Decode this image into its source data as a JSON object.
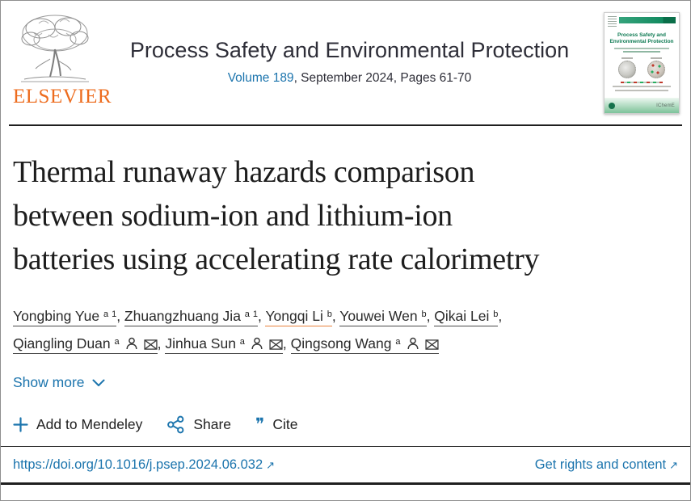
{
  "colors": {
    "link_blue": "#1b74ad",
    "elsevier_orange": "#ed6c1e",
    "cover_green": "#128a5f",
    "rule_dark": "#1f1f1f",
    "orange_underline": "#e8823c",
    "text_dark": "#212121"
  },
  "header": {
    "elsevier_label": "ELSEVIER",
    "journal_title": "Process Safety and Environmental Protection",
    "volume_link": "Volume 189",
    "issue_text": ", September 2024, Pages 61-70",
    "cover": {
      "title": "Process Safety and Environmental Protection",
      "publisher_label": "IChemE"
    }
  },
  "article": {
    "title": "Thermal runaway hazards comparison between sodium-ion and lithium-ion batteries using accelerating rate calorimetry",
    "title_lines": [
      "Thermal runaway hazards comparison",
      "between sodium-ion and lithium-ion",
      "batteries using accelerating rate calorimetry"
    ]
  },
  "authors": {
    "separator": ", ",
    "list": [
      {
        "name": "Yongbing Yue",
        "sup": "a 1",
        "contact_icons": false,
        "underline": "dark"
      },
      {
        "name": "Zhuangzhuang Jia",
        "sup": "a 1",
        "contact_icons": false,
        "underline": "dark"
      },
      {
        "name": "Yongqi Li",
        "sup": "b",
        "contact_icons": false,
        "underline": "orange"
      },
      {
        "name": "Youwei Wen",
        "sup": "b",
        "contact_icons": false,
        "underline": "dark"
      },
      {
        "name": "Qikai Lei",
        "sup": "b",
        "contact_icons": false,
        "underline": "dark"
      },
      {
        "name": "Qiangling Duan",
        "sup": "a",
        "contact_icons": true,
        "underline": "dark"
      },
      {
        "name": "Jinhua Sun",
        "sup": "a",
        "contact_icons": true,
        "underline": "dark"
      },
      {
        "name": "Qingsong Wang",
        "sup": "a",
        "contact_icons": true,
        "underline": "dark"
      }
    ]
  },
  "show_more": {
    "label": "Show more"
  },
  "actions": {
    "mendeley": "Add to Mendeley",
    "share": "Share",
    "cite": "Cite"
  },
  "footer_links": {
    "doi": "https://doi.org/10.1016/j.psep.2024.06.032",
    "rights": "Get rights and content"
  }
}
